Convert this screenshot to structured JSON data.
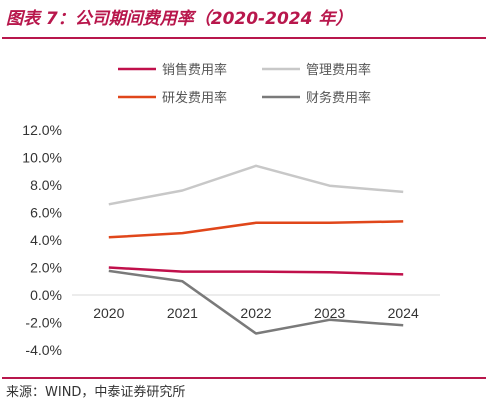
{
  "header": {
    "title": "图表 7：公司期间费用率（2020-2024 年）"
  },
  "footer": {
    "source": "来源：WIND，中泰证券研究所"
  },
  "chart_data": {
    "type": "line",
    "title": "图表 7：公司期间费用率（2020-2024 年）",
    "xlabel": "",
    "ylabel": "",
    "categories": [
      "2020",
      "2021",
      "2022",
      "2023",
      "2024"
    ],
    "y_ticks": [
      "-4.0%",
      "-2.0%",
      "0.0%",
      "2.0%",
      "4.0%",
      "6.0%",
      "8.0%",
      "10.0%",
      "12.0%"
    ],
    "ylim": [
      -4,
      12
    ],
    "grid": false,
    "legend_position": "top",
    "series": [
      {
        "name": "销售费用率",
        "color": "#c0104b",
        "values": [
          2.0,
          1.7,
          1.7,
          1.65,
          1.5
        ]
      },
      {
        "name": "管理费用率",
        "color": "#c8c8c8",
        "values": [
          6.6,
          7.6,
          9.4,
          7.95,
          7.5
        ]
      },
      {
        "name": "研发费用率",
        "color": "#e0461a",
        "values": [
          4.2,
          4.5,
          5.25,
          5.25,
          5.35
        ]
      },
      {
        "name": "财务费用率",
        "color": "#7a7a7a",
        "values": [
          1.75,
          1.0,
          -2.8,
          -1.8,
          -2.2
        ]
      }
    ]
  }
}
